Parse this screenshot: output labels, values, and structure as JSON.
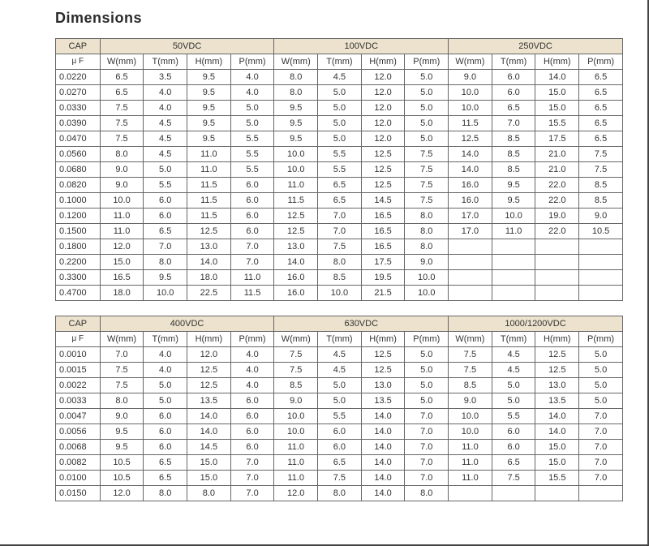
{
  "title": "Dimensions",
  "table1": {
    "cap_label": "CAP",
    "uf_label": "μ F",
    "groups": [
      "50VDC",
      "100VDC",
      "250VDC"
    ],
    "subcols": [
      "W(mm)",
      "T(mm)",
      "H(mm)",
      "P(mm)"
    ],
    "rows": [
      {
        "cap": "0.0220",
        "v": [
          "6.5",
          "3.5",
          "9.5",
          "4.0",
          "8.0",
          "4.5",
          "12.0",
          "5.0",
          "9.0",
          "6.0",
          "14.0",
          "6.5"
        ]
      },
      {
        "cap": "0.0270",
        "v": [
          "6.5",
          "4.0",
          "9.5",
          "4.0",
          "8.0",
          "5.0",
          "12.0",
          "5.0",
          "10.0",
          "6.0",
          "15.0",
          "6.5"
        ]
      },
      {
        "cap": "0.0330",
        "v": [
          "7.5",
          "4.0",
          "9.5",
          "5.0",
          "9.5",
          "5.0",
          "12.0",
          "5.0",
          "10.0",
          "6.5",
          "15.0",
          "6.5"
        ]
      },
      {
        "cap": "0.0390",
        "v": [
          "7.5",
          "4.5",
          "9.5",
          "5.0",
          "9.5",
          "5.0",
          "12.0",
          "5.0",
          "11.5",
          "7.0",
          "15.5",
          "6.5"
        ]
      },
      {
        "cap": "0.0470",
        "v": [
          "7.5",
          "4.5",
          "9.5",
          "5.5",
          "9.5",
          "5.0",
          "12.0",
          "5.0",
          "12.5",
          "8.5",
          "17.5",
          "6.5"
        ]
      },
      {
        "cap": "0.0560",
        "v": [
          "8.0",
          "4.5",
          "11.0",
          "5.5",
          "10.0",
          "5.5",
          "12.5",
          "7.5",
          "14.0",
          "8.5",
          "21.0",
          "7.5"
        ]
      },
      {
        "cap": "0.0680",
        "v": [
          "9.0",
          "5.0",
          "11.0",
          "5.5",
          "10.0",
          "5.5",
          "12.5",
          "7.5",
          "14.0",
          "8.5",
          "21.0",
          "7.5"
        ]
      },
      {
        "cap": "0.0820",
        "v": [
          "9.0",
          "5.5",
          "11.5",
          "6.0",
          "11.0",
          "6.5",
          "12.5",
          "7.5",
          "16.0",
          "9.5",
          "22.0",
          "8.5"
        ]
      },
      {
        "cap": "0.1000",
        "v": [
          "10.0",
          "6.0",
          "11.5",
          "6.0",
          "11.5",
          "6.5",
          "14.5",
          "7.5",
          "16.0",
          "9.5",
          "22.0",
          "8.5"
        ]
      },
      {
        "cap": "0.1200",
        "v": [
          "11.0",
          "6.0",
          "11.5",
          "6.0",
          "12.5",
          "7.0",
          "16.5",
          "8.0",
          "17.0",
          "10.0",
          "19.0",
          "9.0"
        ]
      },
      {
        "cap": "0.1500",
        "v": [
          "11.0",
          "6.5",
          "12.5",
          "6.0",
          "12.5",
          "7.0",
          "16.5",
          "8.0",
          "17.0",
          "11.0",
          "22.0",
          "10.5"
        ]
      },
      {
        "cap": "0.1800",
        "v": [
          "12.0",
          "7.0",
          "13.0",
          "7.0",
          "13.0",
          "7.5",
          "16.5",
          "8.0",
          "",
          "",
          "",
          ""
        ]
      },
      {
        "cap": "0.2200",
        "v": [
          "15.0",
          "8.0",
          "14.0",
          "7.0",
          "14.0",
          "8.0",
          "17.5",
          "9.0",
          "",
          "",
          "",
          ""
        ]
      },
      {
        "cap": "0.3300",
        "v": [
          "16.5",
          "9.5",
          "18.0",
          "11.0",
          "16.0",
          "8.5",
          "19.5",
          "10.0",
          "",
          "",
          "",
          ""
        ]
      },
      {
        "cap": "0.4700",
        "v": [
          "18.0",
          "10.0",
          "22.5",
          "11.5",
          "16.0",
          "10.0",
          "21.5",
          "10.0",
          "",
          "",
          "",
          ""
        ]
      }
    ]
  },
  "table2": {
    "cap_label": "CAP",
    "uf_label": "μ F",
    "groups": [
      "400VDC",
      "630VDC",
      "1000/1200VDC"
    ],
    "subcols": [
      "W(mm)",
      "T(mm)",
      "H(mm)",
      "P(mm)"
    ],
    "rows": [
      {
        "cap": "0.0010",
        "v": [
          "7.0",
          "4.0",
          "12.0",
          "4.0",
          "7.5",
          "4.5",
          "12.5",
          "5.0",
          "7.5",
          "4.5",
          "12.5",
          "5.0"
        ]
      },
      {
        "cap": "0.0015",
        "v": [
          "7.5",
          "4.0",
          "12.5",
          "4.0",
          "7.5",
          "4.5",
          "12.5",
          "5.0",
          "7.5",
          "4.5",
          "12.5",
          "5.0"
        ]
      },
      {
        "cap": "0.0022",
        "v": [
          "7.5",
          "5.0",
          "12.5",
          "4.0",
          "8.5",
          "5.0",
          "13.0",
          "5.0",
          "8.5",
          "5.0",
          "13.0",
          "5.0"
        ]
      },
      {
        "cap": "0.0033",
        "v": [
          "8.0",
          "5.0",
          "13.5",
          "6.0",
          "9.0",
          "5.0",
          "13.5",
          "5.0",
          "9.0",
          "5.0",
          "13.5",
          "5.0"
        ]
      },
      {
        "cap": "0.0047",
        "v": [
          "9.0",
          "6.0",
          "14.0",
          "6.0",
          "10.0",
          "5.5",
          "14.0",
          "7.0",
          "10.0",
          "5.5",
          "14.0",
          "7.0"
        ]
      },
      {
        "cap": "0.0056",
        "v": [
          "9.5",
          "6.0",
          "14.0",
          "6.0",
          "10.0",
          "6.0",
          "14.0",
          "7.0",
          "10.0",
          "6.0",
          "14.0",
          "7.0"
        ]
      },
      {
        "cap": "0.0068",
        "v": [
          "9.5",
          "6.0",
          "14.5",
          "6.0",
          "11.0",
          "6.0",
          "14.0",
          "7.0",
          "11.0",
          "6.0",
          "15.0",
          "7.0"
        ]
      },
      {
        "cap": "0.0082",
        "v": [
          "10.5",
          "6.5",
          "15.0",
          "7.0",
          "11.0",
          "6.5",
          "14.0",
          "7.0",
          "11.0",
          "6.5",
          "15.0",
          "7.0"
        ]
      },
      {
        "cap": "0.0100",
        "v": [
          "10.5",
          "6.5",
          "15.0",
          "7.0",
          "11.0",
          "7.5",
          "14.0",
          "7.0",
          "11.0",
          "7.5",
          "15.5",
          "7.0"
        ]
      },
      {
        "cap": "0.0150",
        "v": [
          "12.0",
          "8.0",
          "8.0",
          "7.0",
          "12.0",
          "8.0",
          "14.0",
          "8.0",
          "",
          "",
          "",
          ""
        ]
      }
    ]
  },
  "colors": {
    "header_bg": "#ece2cd",
    "border": "#666666",
    "page_border": "#444444",
    "text": "#333333"
  }
}
